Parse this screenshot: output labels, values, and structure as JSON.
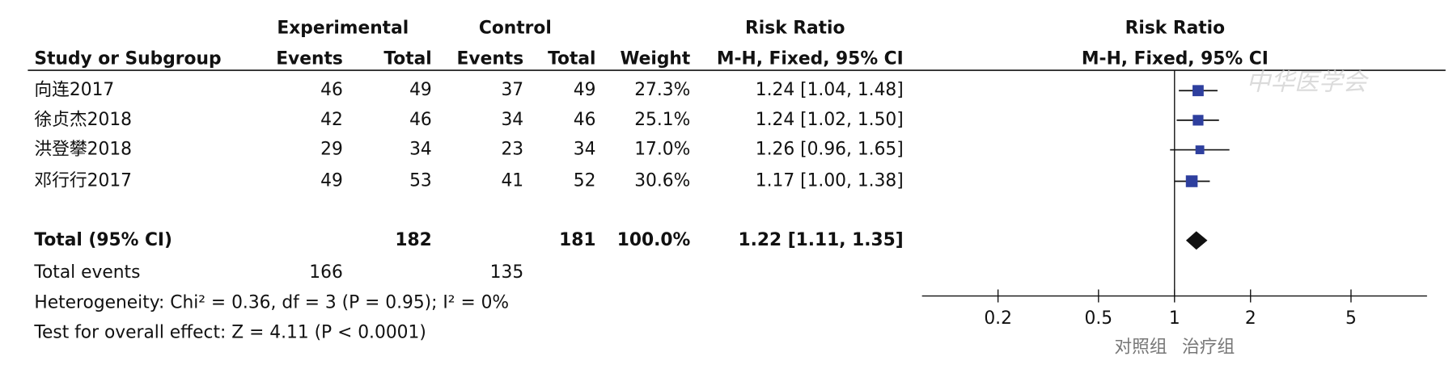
{
  "chart_data": {
    "type": "forest",
    "experimental_label": "Experimental",
    "control_label": "Control",
    "effect_label": "Risk Ratio",
    "plot_label": "Risk Ratio",
    "column_headers": [
      "Study or Subgroup",
      "Events",
      "Total",
      "Events",
      "Total",
      "Weight",
      "M-H, Fixed, 95% CI"
    ],
    "plot_subtitle": "M-H, Fixed, 95% CI",
    "studies": [
      {
        "name": "向连2017",
        "exp_events": 46,
        "exp_total": 49,
        "ctrl_events": 37,
        "ctrl_total": 49,
        "weight": 27.3,
        "weight_label": "27.3%",
        "rr": 1.24,
        "ci_low": 1.04,
        "ci_high": 1.48,
        "ci_label": "1.24 [1.04, 1.48]"
      },
      {
        "name": "徐贞杰2018",
        "exp_events": 42,
        "exp_total": 46,
        "ctrl_events": 34,
        "ctrl_total": 46,
        "weight": 25.1,
        "weight_label": "25.1%",
        "rr": 1.24,
        "ci_low": 1.02,
        "ci_high": 1.5,
        "ci_label": "1.24 [1.02, 1.50]"
      },
      {
        "name": "洪登攀2018",
        "exp_events": 29,
        "exp_total": 34,
        "ctrl_events": 23,
        "ctrl_total": 34,
        "weight": 17.0,
        "weight_label": "17.0%",
        "rr": 1.26,
        "ci_low": 0.96,
        "ci_high": 1.65,
        "ci_label": "1.26 [0.96, 1.65]"
      },
      {
        "name": "邓行行2017",
        "exp_events": 49,
        "exp_total": 53,
        "ctrl_events": 41,
        "ctrl_total": 52,
        "weight": 30.6,
        "weight_label": "30.6%",
        "rr": 1.17,
        "ci_low": 1.0,
        "ci_high": 1.38,
        "ci_label": "1.17 [1.00, 1.38]"
      }
    ],
    "total": {
      "name": "Total (95% CI)",
      "exp_total": 182,
      "ctrl_total": 181,
      "weight": 100.0,
      "weight_label": "100.0%",
      "rr": 1.22,
      "ci_low": 1.11,
      "ci_high": 1.35,
      "ci_label": "1.22 [1.11, 1.35]"
    },
    "total_events": {
      "name": "Total events",
      "exp_events": 166,
      "ctrl_events": 135
    },
    "heterogeneity": "Heterogeneity: Chi² = 0.36, df = 3 (P = 0.95); I² = 0%",
    "overall_effect": "Test for overall effect: Z = 4.11 (P < 0.0001)",
    "log_scale": true,
    "xlim": [
      0.1,
      10
    ],
    "xticks": [
      0.2,
      0.5,
      1,
      2,
      5
    ],
    "favours_left": "对照组",
    "favours_right": "治疗组",
    "marker_color": "#2e3f9e",
    "watermark": "中华医学会"
  }
}
